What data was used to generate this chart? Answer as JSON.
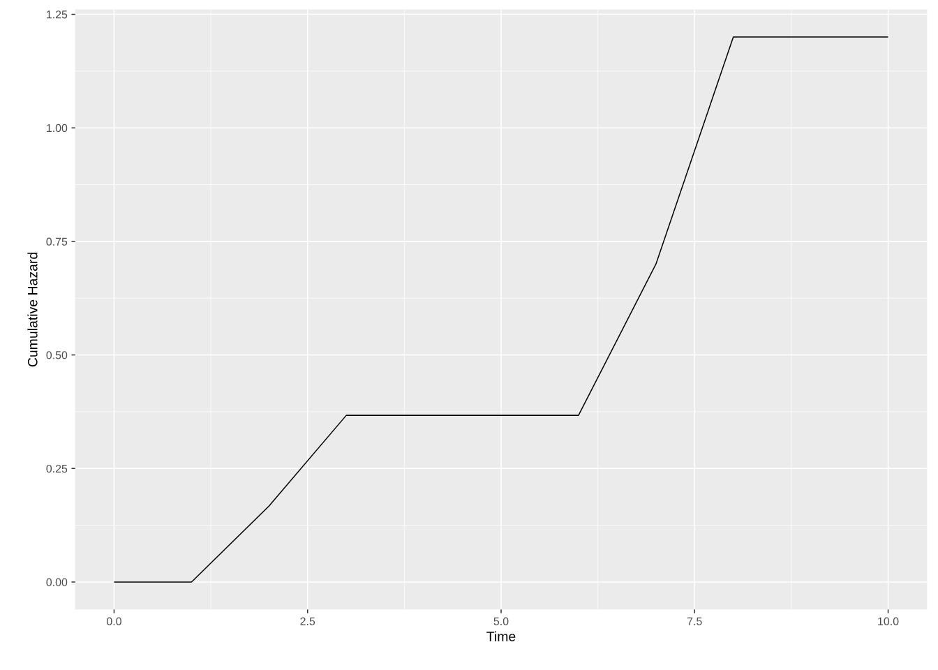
{
  "chart_data": {
    "type": "line",
    "xlabel": "Time",
    "ylabel": "Cumulative Hazard",
    "x": [
      0,
      1,
      2,
      3,
      6,
      7,
      8,
      10
    ],
    "series": [
      {
        "color": "#000000",
        "values": [
          0,
          0,
          0.167,
          0.367,
          0.367,
          0.7,
          1.2,
          1.2
        ]
      }
    ],
    "xlim": [
      -0.5,
      10.5
    ],
    "xticks": [
      {
        "value": 0,
        "label": "0.0"
      },
      2.5,
      {
        "value": 5,
        "label": "5.0"
      },
      7.5,
      {
        "value": 10,
        "label": "10.0"
      }
    ],
    "ylim": [
      -0.06,
      1.26
    ],
    "yticks": [
      {
        "value": 0,
        "label": "0.00"
      },
      0.25,
      {
        "value": 0.5,
        "label": "0.50"
      },
      0.75,
      {
        "value": 1,
        "label": "1.00"
      },
      1.25
    ],
    "grid": true,
    "line_style": "solid"
  }
}
